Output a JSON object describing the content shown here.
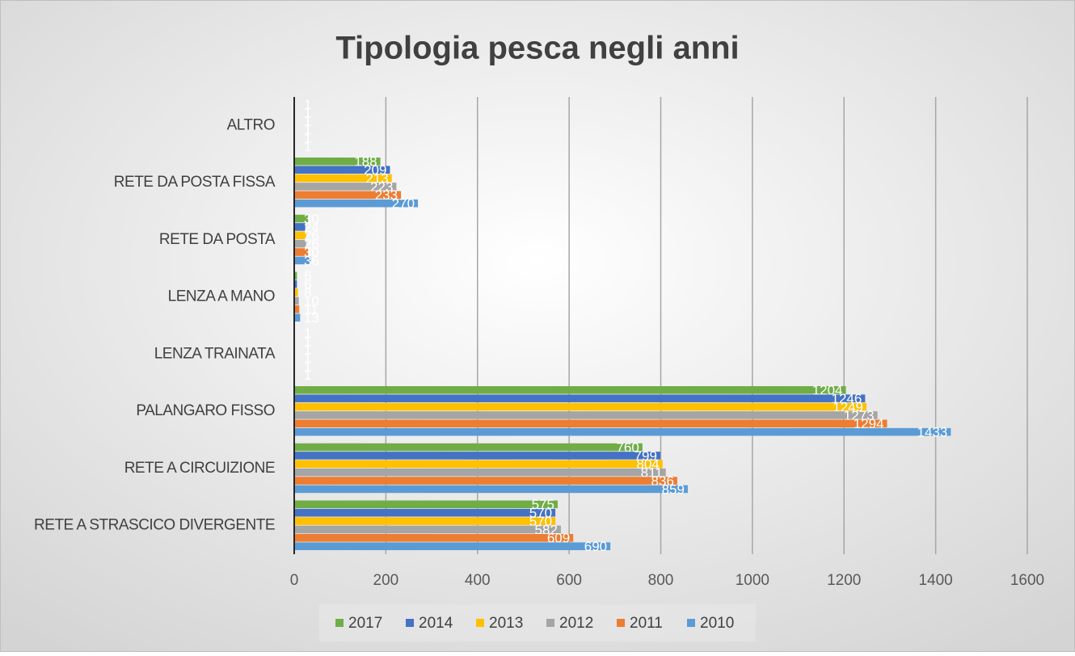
{
  "chart_data": {
    "type": "bar",
    "orientation": "horizontal",
    "title": "Tipologia pesca negli anni",
    "categories": [
      "ALTRO",
      "RETE DA POSTA FISSA",
      "RETE DA POSTA",
      "LENZA A MANO",
      "LENZA TRAINATA",
      "PALANGARO FISSO",
      "RETE A CIRCUIZIONE",
      "RETE A STRASCICO DIVERGENTE"
    ],
    "series": [
      {
        "name": "2017",
        "color": "#70ad47",
        "values": [
          1,
          188,
          30,
          6,
          1,
          1204,
          760,
          575
        ]
      },
      {
        "name": "2014",
        "color": "#4472c4",
        "values": [
          1,
          209,
          24,
          6,
          1,
          1246,
          799,
          570
        ]
      },
      {
        "name": "2013",
        "color": "#ffc000",
        "values": [
          1,
          213,
          26,
          8,
          1,
          1249,
          804,
          570
        ]
      },
      {
        "name": "2012",
        "color": "#a5a5a5",
        "values": [
          1,
          223,
          26,
          10,
          1,
          1273,
          811,
          582
        ]
      },
      {
        "name": "2011",
        "color": "#ed7d31",
        "values": [
          1,
          233,
          30,
          11,
          1,
          1294,
          836,
          609
        ]
      },
      {
        "name": "2010",
        "color": "#5b9bd5",
        "values": [
          1,
          270,
          36,
          13,
          1,
          1433,
          859,
          690
        ]
      }
    ],
    "xlim": [
      0,
      1600
    ],
    "xticks": [
      0,
      200,
      400,
      600,
      800,
      1000,
      1200,
      1400,
      1600
    ],
    "grid": true,
    "legend": "bottom"
  }
}
